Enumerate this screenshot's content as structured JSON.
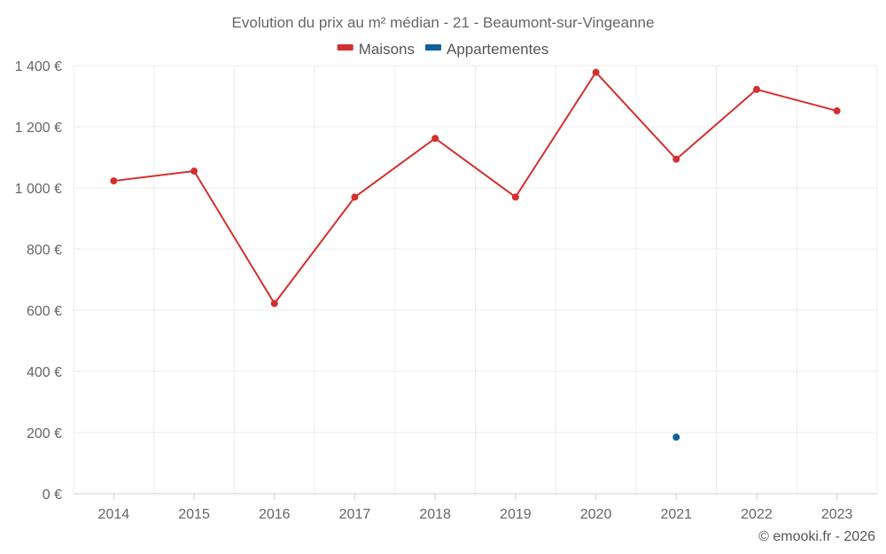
{
  "chart_data": {
    "type": "line",
    "title": "Evolution du prix au m² médian - 21 - Beaumont-sur-Vingeanne",
    "categories": [
      "2014",
      "2015",
      "2016",
      "2017",
      "2018",
      "2019",
      "2020",
      "2021",
      "2022",
      "2023"
    ],
    "series": [
      {
        "name": "Maisons",
        "color": "#d32f2f",
        "values": [
          1023,
          1055,
          622,
          970,
          1162,
          970,
          1378,
          1094,
          1322,
          1252
        ]
      },
      {
        "name": "Appartementes",
        "color": "#0d6299",
        "values": [
          null,
          null,
          null,
          null,
          null,
          null,
          null,
          185,
          null,
          null
        ]
      }
    ],
    "ylim": [
      0,
      1400
    ],
    "yticks": [
      0,
      200,
      400,
      600,
      800,
      1000,
      1200,
      1400
    ],
    "ytick_labels": [
      "0 €",
      "200 €",
      "400 €",
      "600 €",
      "800 €",
      "1 000 €",
      "1 200 €",
      "1 400 €"
    ],
    "grid": true,
    "legend_position": "top-center",
    "credit": "© emooki.fr - 2026"
  }
}
